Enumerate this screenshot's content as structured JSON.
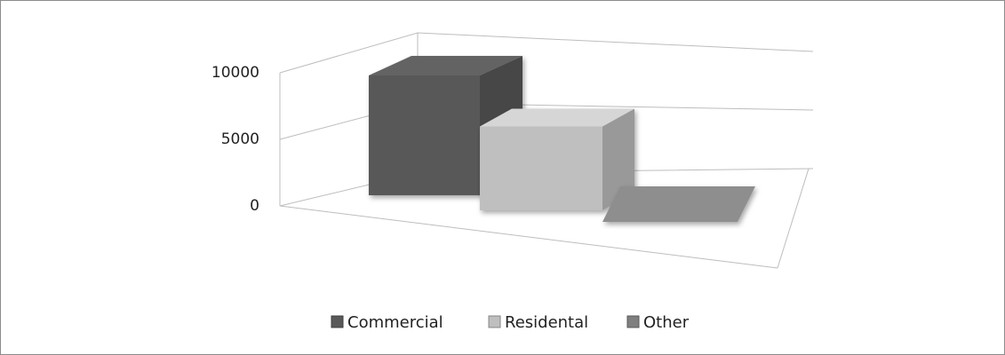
{
  "chart_data": {
    "type": "bar3d",
    "categories": [
      null
    ],
    "series": [
      {
        "name": "Commercial",
        "color": "#595959",
        "values": [
          10000
        ]
      },
      {
        "name": "Residental",
        "color": "#bfbfbf",
        "values": [
          7000
        ]
      },
      {
        "name": "Other",
        "color": "#7f7f7f",
        "values": [
          0
        ]
      }
    ],
    "ylim": [
      0,
      10000
    ],
    "yticks": [
      0,
      5000,
      10000
    ],
    "grid": true,
    "legend": "bottom"
  }
}
